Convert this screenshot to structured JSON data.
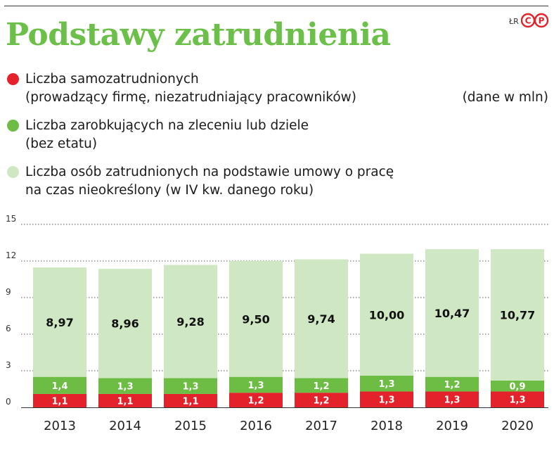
{
  "title": "Podstawy zatrudnienia",
  "credit": "ŁR",
  "logo_text": "CP",
  "unit_label": "(dane w mln)",
  "legend": [
    {
      "line1": "Liczba samozatrudnionych",
      "line2": "(prowadzący firmę, niezatrudniający pracowników)",
      "color": "#e3222b"
    },
    {
      "line1": "Liczba zarobkujących na zleceniu lub dziele",
      "line2": "(bez etatu)",
      "color": "#6dbd45"
    },
    {
      "line1": "Liczba osób zatrudnionych na podstawie umowy o pracę",
      "line2": "na czas nieokreślony (w IV kw. danego roku)",
      "color": "#cfe8c3"
    }
  ],
  "chart_data": {
    "type": "bar",
    "stacked": true,
    "categories": [
      "2013",
      "2014",
      "2015",
      "2016",
      "2017",
      "2018",
      "2019",
      "2020"
    ],
    "series": [
      {
        "name": "Liczba samozatrudnionych (prowadzący firmę, niezatrudniający pracowników)",
        "color": "#e3222b",
        "values": [
          1.1,
          1.1,
          1.1,
          1.2,
          1.2,
          1.3,
          1.3,
          1.3
        ],
        "labels": [
          "1,1",
          "1,1",
          "1,1",
          "1,2",
          "1,2",
          "1,3",
          "1,3",
          "1,3"
        ]
      },
      {
        "name": "Liczba zarobkujących na zleceniu lub dziele (bez etatu)",
        "color": "#6dbd45",
        "values": [
          1.4,
          1.3,
          1.3,
          1.3,
          1.2,
          1.3,
          1.2,
          0.9
        ],
        "labels": [
          "1,4",
          "1,3",
          "1,3",
          "1,3",
          "1,2",
          "1,3",
          "1,2",
          "0,9"
        ]
      },
      {
        "name": "Liczba osób zatrudnionych na podstawie umowy o pracę na czas nieokreślony (w IV kw. danego roku)",
        "color": "#cfe8c3",
        "values": [
          8.97,
          8.96,
          9.28,
          9.5,
          9.74,
          10.0,
          10.47,
          10.77
        ],
        "labels": [
          "8,97",
          "8,96",
          "9,28",
          "9,50",
          "9,74",
          "10,00",
          "10,47",
          "10,77"
        ]
      }
    ],
    "ylim": [
      0,
      15
    ],
    "yticks": [
      0,
      3,
      6,
      9,
      12,
      15
    ],
    "ytick_labels": [
      "0",
      "3",
      "6",
      "9",
      "12",
      "15"
    ],
    "grid": true,
    "xlabel": "",
    "ylabel": ""
  }
}
